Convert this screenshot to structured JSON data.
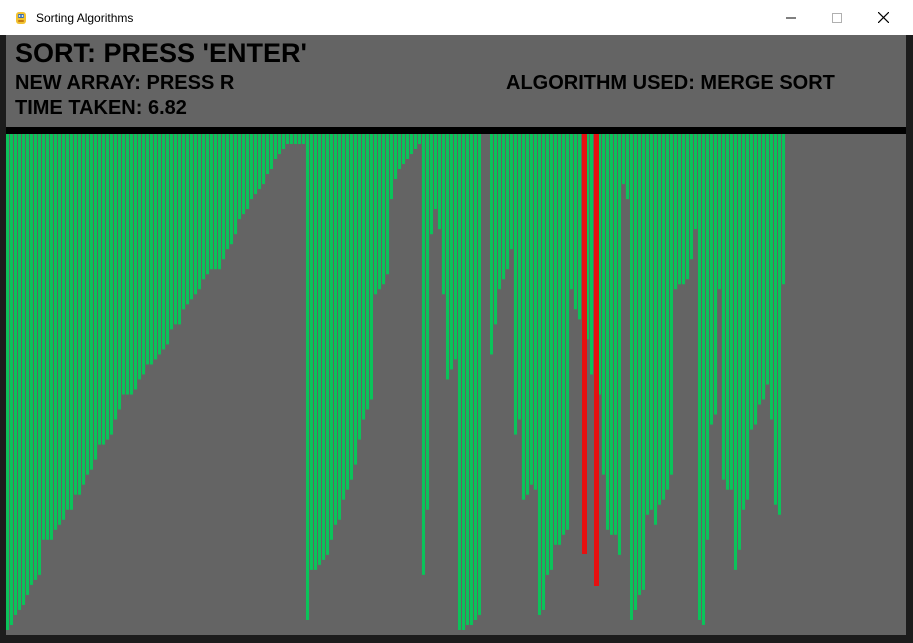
{
  "window": {
    "title": "Sorting Algorithms"
  },
  "header": {
    "sort_instruction": "SORT: PRESS 'ENTER'",
    "new_array_instruction": "NEW ARRAY: PRESS R",
    "time_taken": "TIME TAKEN: 6.82",
    "algorithm_used": "ALGORITHM USED: MERGE SORT"
  },
  "colors": {
    "background": "#646464",
    "bar": "#0bc35a",
    "bar_highlight": "#e61010",
    "text": "#000000"
  },
  "icons": [
    "pygame-snake-icon",
    "minimize-icon",
    "maximize-icon",
    "close-icon"
  ],
  "chart_data": {
    "type": "bar",
    "description_of_values": "array element values, 1 = full bar",
    "values": [
      0.99,
      0.98,
      0.96,
      0.95,
      0.94,
      0.92,
      0.9,
      0.89,
      0.88,
      0.81,
      0.81,
      0.81,
      0.79,
      0.78,
      0.77,
      0.75,
      0.75,
      0.72,
      0.72,
      0.7,
      0.68,
      0.67,
      0.65,
      0.62,
      0.62,
      0.61,
      0.6,
      0.57,
      0.55,
      0.52,
      0.52,
      0.52,
      0.51,
      0.49,
      0.48,
      0.46,
      0.46,
      0.45,
      0.44,
      0.43,
      0.42,
      0.39,
      0.38,
      0.38,
      0.35,
      0.34,
      0.33,
      0.32,
      0.31,
      0.29,
      0.28,
      0.27,
      0.27,
      0.27,
      0.25,
      0.23,
      0.22,
      0.2,
      0.17,
      0.16,
      0.15,
      0.13,
      0.12,
      0.11,
      0.1,
      0.08,
      0.07,
      0.05,
      0.04,
      0.03,
      0.02,
      0.02,
      0.02,
      0.02,
      0.02,
      0.97,
      0.87,
      0.87,
      0.86,
      0.85,
      0.84,
      0.81,
      0.78,
      0.77,
      0.73,
      0.71,
      0.69,
      0.66,
      0.61,
      0.57,
      0.55,
      0.53,
      0.32,
      0.31,
      0.3,
      0.28,
      0.13,
      0.09,
      0.07,
      0.06,
      0.05,
      0.04,
      0.03,
      0.02,
      0.88,
      0.75,
      0.2,
      0.15,
      0.19,
      0.32,
      0.49,
      0.47,
      0.45,
      0.99,
      0.99,
      0.98,
      0.98,
      0.97,
      0.96,
      0.0,
      0.0,
      0.44,
      0.38,
      0.31,
      0.29,
      0.27,
      0.23,
      0.6,
      0.57,
      0.73,
      0.72,
      0.7,
      0.71,
      0.96,
      0.95,
      0.88,
      0.87,
      0.82,
      0.82,
      0.8,
      0.79,
      0.31,
      0.35,
      0.37,
      0.42,
      0.41,
      0.48,
      0.51,
      0.52,
      0.68,
      0.79,
      0.8,
      0.8,
      0.84,
      0.1,
      0.13,
      0.97,
      0.95,
      0.92,
      0.91,
      0.76,
      0.75,
      0.78,
      0.74,
      0.73,
      0.71,
      0.68,
      0.31,
      0.3,
      0.3,
      0.29,
      0.25,
      0.19,
      0.97,
      0.98,
      0.81,
      0.58,
      0.56,
      0.31,
      0.69,
      0.71,
      0.71,
      0.87,
      0.83,
      0.75,
      0.73,
      0.59,
      0.58,
      0.54,
      0.53,
      0.5,
      0.57,
      0.74,
      0.76,
      0.3
    ]
  }
}
